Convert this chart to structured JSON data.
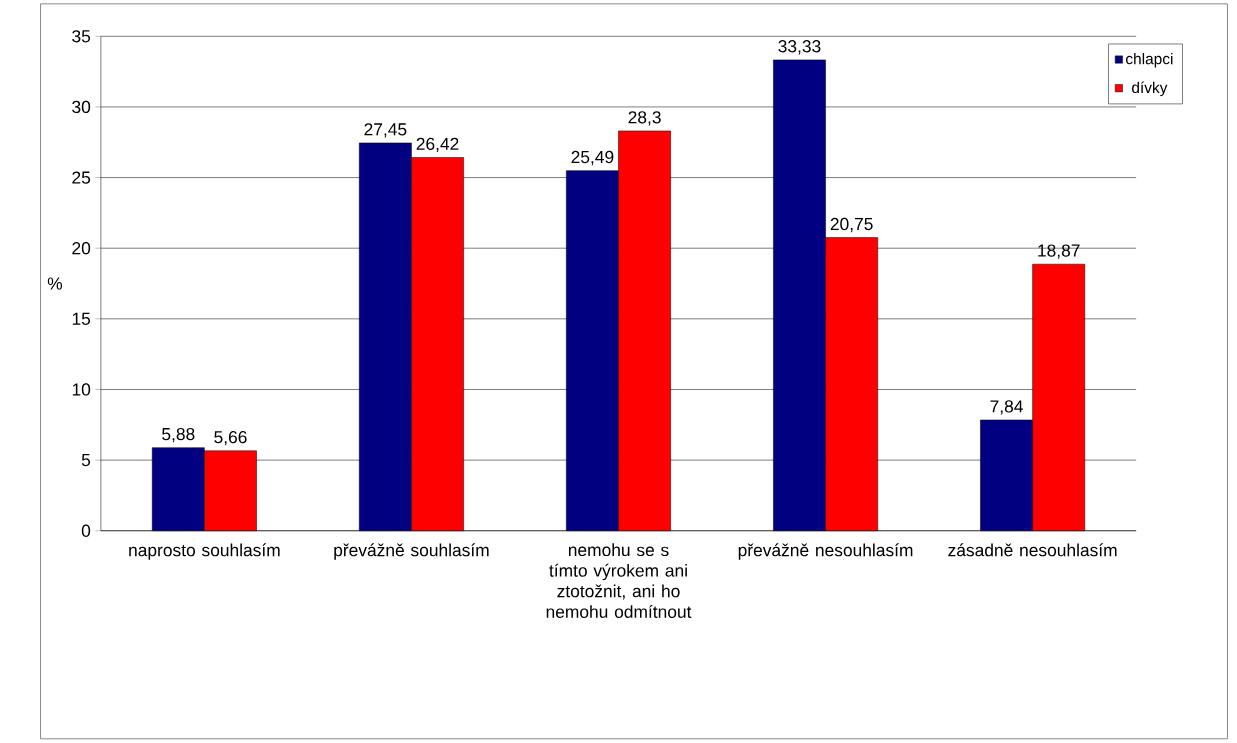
{
  "chart_data": {
    "type": "bar",
    "ylabel": "%",
    "categories": [
      "naprosto souhlasím",
      "převážně souhlasím",
      "nemohu se s tímto výrokem ani ztotožnit, ani ho nemohu odmítnout",
      "převážně nesouhlasím",
      "zásadně nesouhlasím"
    ],
    "series": [
      {
        "name": "chlapci",
        "color": "#000080",
        "values": [
          5.88,
          27.45,
          25.49,
          33.33,
          7.84
        ],
        "value_labels": [
          "5,88",
          "27,45",
          "25,49",
          "33,33",
          "7,84"
        ]
      },
      {
        "name": "dívky",
        "color": "#ff0000",
        "values": [
          5.66,
          26.42,
          28.3,
          20.75,
          18.87
        ],
        "value_labels": [
          "5,66",
          "26,42",
          "28,3",
          "20,75",
          "18,87"
        ]
      }
    ],
    "ylim": [
      0,
      35
    ],
    "yticks": [
      0,
      5,
      10,
      15,
      20,
      25,
      30,
      35
    ],
    "grid": "y",
    "legend": "top right"
  }
}
